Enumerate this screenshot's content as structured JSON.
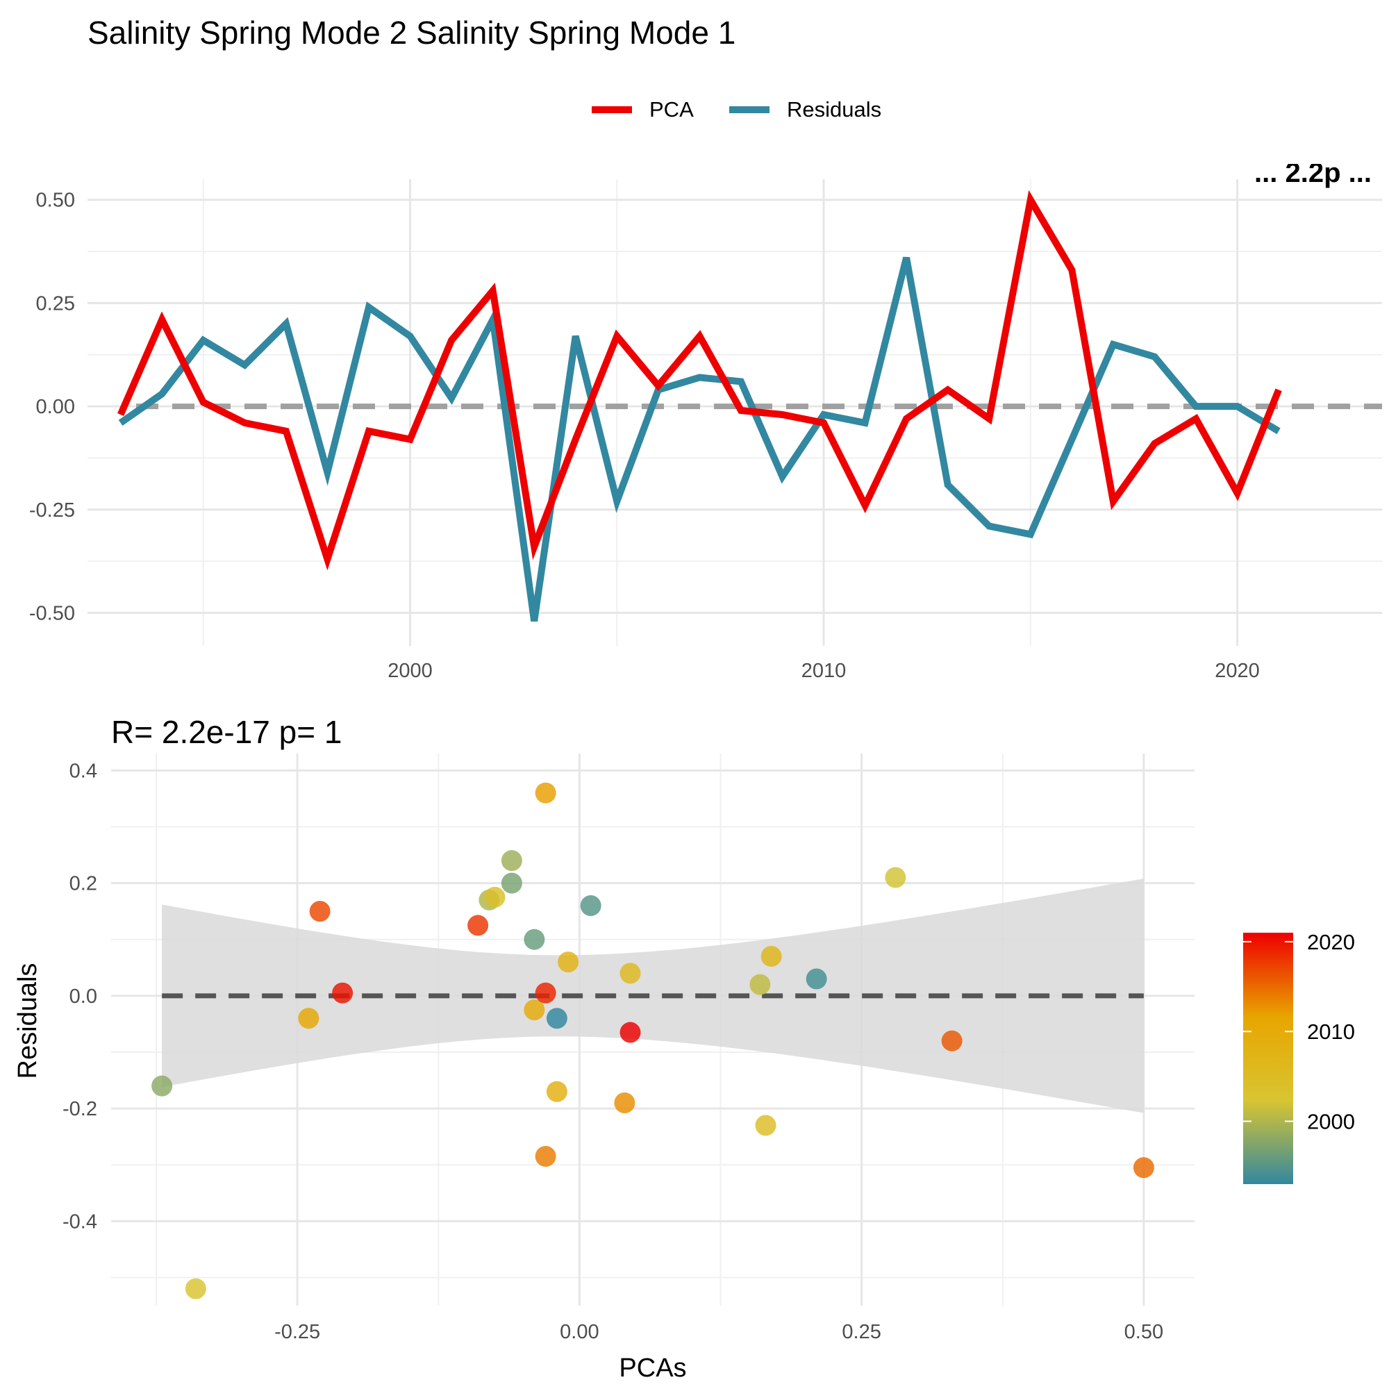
{
  "title": "Salinity Spring Mode 2 Salinity Spring Mode 1",
  "top_right_fragment": "... 2.2p ...",
  "legend": {
    "items": [
      {
        "label": "PCA",
        "color": "#EE0000"
      },
      {
        "label": "Residuals",
        "color": "#3288A0"
      }
    ]
  },
  "chart_data": [
    {
      "type": "line",
      "xlim": [
        1992.2,
        2023.5
      ],
      "ylim": [
        -0.58,
        0.55
      ],
      "x_ticks": [
        2000,
        2010,
        2020
      ],
      "y_ticks": [
        -0.5,
        -0.25,
        0.0,
        0.25,
        0.5
      ],
      "y_tick_labels": [
        "-0.50",
        "-0.25",
        "0.00",
        "0.25",
        "0.50"
      ],
      "x_tick_labels": [
        "2000",
        "2010",
        "2020"
      ],
      "hline": 0,
      "x": [
        1993,
        1994,
        1995,
        1996,
        1997,
        1998,
        1999,
        2000,
        2001,
        2002,
        2003,
        2004,
        2005,
        2006,
        2007,
        2008,
        2009,
        2010,
        2011,
        2012,
        2013,
        2014,
        2015,
        2016,
        2017,
        2018,
        2019,
        2020,
        2021
      ],
      "series": [
        {
          "name": "PCA",
          "color": "#EE0000",
          "values": [
            -0.02,
            0.21,
            0.01,
            -0.04,
            -0.06,
            -0.37,
            -0.06,
            -0.08,
            0.16,
            0.28,
            -0.34,
            -0.08,
            0.17,
            0.05,
            0.17,
            -0.01,
            -0.02,
            -0.04,
            -0.24,
            -0.03,
            0.04,
            -0.03,
            0.5,
            0.33,
            -0.23,
            -0.09,
            -0.03,
            -0.21,
            0.04
          ]
        },
        {
          "name": "Residuals",
          "color": "#3288A0",
          "values": [
            -0.04,
            0.03,
            0.16,
            0.1,
            0.2,
            -0.16,
            0.24,
            0.17,
            0.02,
            0.21,
            -0.52,
            0.17,
            -0.23,
            0.04,
            0.07,
            0.06,
            -0.17,
            -0.02,
            -0.04,
            0.36,
            -0.19,
            -0.29,
            -0.31,
            -0.08,
            0.15,
            0.12,
            0.0,
            0.0,
            -0.06
          ]
        }
      ]
    },
    {
      "type": "scatter",
      "title": "R= 2.2e-17  p= 1",
      "xlabel": "PCAs",
      "ylabel": "Residuals",
      "xlim": [
        -0.415,
        0.545
      ],
      "ylim": [
        -0.55,
        0.43
      ],
      "x_ticks": [
        -0.25,
        0.0,
        0.25,
        0.5
      ],
      "x_tick_labels": [
        "-0.25",
        "0.00",
        "0.25",
        "0.50"
      ],
      "y_ticks": [
        -0.4,
        -0.2,
        0.0,
        0.2,
        0.4
      ],
      "y_tick_labels": [
        "-0.4",
        "-0.2",
        "0.0",
        "0.2",
        "0.4"
      ],
      "hline": 0,
      "confidence_band": {
        "x": [
          -0.37,
          0.5
        ],
        "upper": [
          0.162,
          0.208
        ],
        "lower": [
          -0.162,
          -0.208
        ],
        "center_half_width": 0.072,
        "color": "#D9D9D9"
      },
      "color_scale": {
        "labels": [
          "2000",
          "2010",
          "2020"
        ],
        "values": [
          2000,
          2010,
          2020
        ],
        "range": [
          1993,
          2021
        ],
        "colors": [
          "#3288A0",
          "#D8C531",
          "#E8A500",
          "#EE0000"
        ]
      },
      "points": [
        {
          "x": -0.02,
          "y": -0.04,
          "year": 1993
        },
        {
          "x": 0.21,
          "y": 0.03,
          "year": 1994
        },
        {
          "x": 0.01,
          "y": 0.16,
          "year": 1995
        },
        {
          "x": -0.04,
          "y": 0.1,
          "year": 1996
        },
        {
          "x": -0.06,
          "y": 0.2,
          "year": 1997
        },
        {
          "x": -0.37,
          "y": -0.16,
          "year": 1998
        },
        {
          "x": -0.06,
          "y": 0.24,
          "year": 1999
        },
        {
          "x": -0.08,
          "y": 0.17,
          "year": 2000
        },
        {
          "x": 0.16,
          "y": 0.02,
          "year": 2001
        },
        {
          "x": 0.28,
          "y": 0.21,
          "year": 2002
        },
        {
          "x": -0.34,
          "y": -0.52,
          "year": 2003
        },
        {
          "x": -0.075,
          "y": 0.175,
          "year": 2004
        },
        {
          "x": 0.165,
          "y": -0.23,
          "year": 2005
        },
        {
          "x": 0.045,
          "y": 0.04,
          "year": 2006
        },
        {
          "x": 0.17,
          "y": 0.07,
          "year": 2007
        },
        {
          "x": -0.01,
          "y": 0.06,
          "year": 2008
        },
        {
          "x": -0.02,
          "y": -0.17,
          "year": 2009
        },
        {
          "x": -0.04,
          "y": -0.025,
          "year": 2010
        },
        {
          "x": -0.24,
          "y": -0.04,
          "year": 2011
        },
        {
          "x": -0.03,
          "y": 0.36,
          "year": 2012
        },
        {
          "x": 0.04,
          "y": -0.19,
          "year": 2013
        },
        {
          "x": -0.03,
          "y": -0.285,
          "year": 2014
        },
        {
          "x": 0.5,
          "y": -0.305,
          "year": 2015
        },
        {
          "x": 0.33,
          "y": -0.08,
          "year": 2016
        },
        {
          "x": -0.23,
          "y": 0.15,
          "year": 2017
        },
        {
          "x": -0.09,
          "y": 0.125,
          "year": 2018
        },
        {
          "x": -0.03,
          "y": 0.005,
          "year": 2019
        },
        {
          "x": -0.21,
          "y": 0.005,
          "year": 2020
        },
        {
          "x": 0.045,
          "y": -0.065,
          "year": 2021
        }
      ]
    }
  ]
}
